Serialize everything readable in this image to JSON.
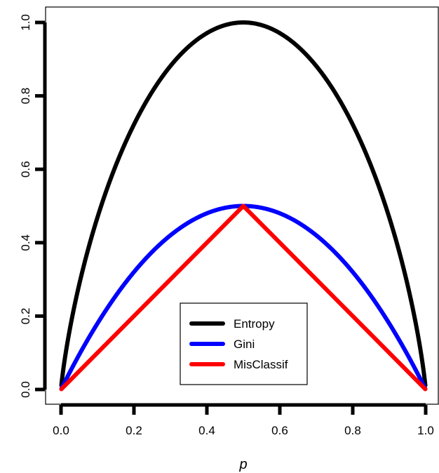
{
  "chart_data": {
    "type": "line",
    "title": "",
    "xlabel": "p",
    "ylabel": "",
    "xlim": [
      0,
      1
    ],
    "ylim": [
      0,
      1
    ],
    "x_ticks": [
      "0.0",
      "0.2",
      "0.4",
      "0.6",
      "0.8",
      "1.0"
    ],
    "y_ticks": [
      "0.0",
      "0.2",
      "0.4",
      "0.6",
      "0.8",
      "1.0"
    ],
    "grid": false,
    "legend_position": "bottom-center",
    "x_range_plotted": [
      0.001,
      0.999
    ],
    "series": [
      {
        "name": "Entropy",
        "color": "#000000",
        "function": "entropy"
      },
      {
        "name": "Gini",
        "color": "#0000ff",
        "function": "gini"
      },
      {
        "name": "MisClassif",
        "color": "#ff0000",
        "function": "misclassification"
      }
    ]
  }
}
